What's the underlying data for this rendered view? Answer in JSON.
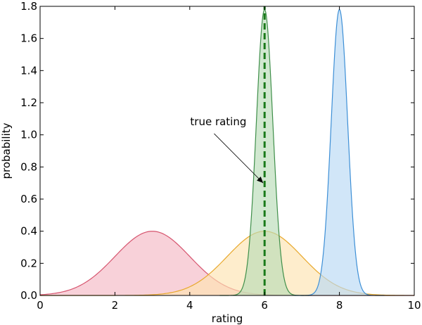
{
  "chart_data": {
    "type": "area",
    "title": "",
    "xlabel": "rating",
    "ylabel": "probability",
    "xlim": [
      0,
      10
    ],
    "ylim": [
      0,
      1.8
    ],
    "xticks": [
      "0",
      "2",
      "4",
      "6",
      "8",
      "10"
    ],
    "yticks": [
      "0.0",
      "0.2",
      "0.4",
      "0.6",
      "0.8",
      "1.0",
      "1.2",
      "1.4",
      "1.6",
      "1.8"
    ],
    "xtick_values": [
      0,
      2,
      4,
      6,
      8,
      10
    ],
    "ytick_values": [
      0,
      0.2,
      0.4,
      0.6,
      0.8,
      1.0,
      1.2,
      1.4,
      1.6,
      1.8
    ],
    "grid": false,
    "series": [
      {
        "mean": 3,
        "sd": 1.0,
        "peak": 0.4,
        "x_range": [
          0,
          10
        ],
        "color": "#d6556f",
        "fill": "#f4b8c4"
      },
      {
        "mean": 6,
        "sd": 1.0,
        "peak": 0.4,
        "x_range": [
          0,
          10
        ],
        "color": "#e8a82c",
        "fill": "#fde3b0"
      },
      {
        "mean": 6,
        "sd": 0.22,
        "peak": 1.78,
        "x_range": [
          4.8,
          7.2
        ],
        "color": "#3f8f4a",
        "fill": "#b9dcb7"
      },
      {
        "mean": 8,
        "sd": 0.22,
        "peak": 1.78,
        "x_range": [
          6.8,
          9.2
        ],
        "color": "#3d8fd6",
        "fill": "#b8d8f4"
      }
    ],
    "true_rating": {
      "x": 6,
      "color": "#1a7a1a"
    },
    "annotation": {
      "text": "true rating",
      "text_at": [
        4.5,
        1.06
      ],
      "arrow_to": [
        6.0,
        0.7
      ]
    }
  }
}
